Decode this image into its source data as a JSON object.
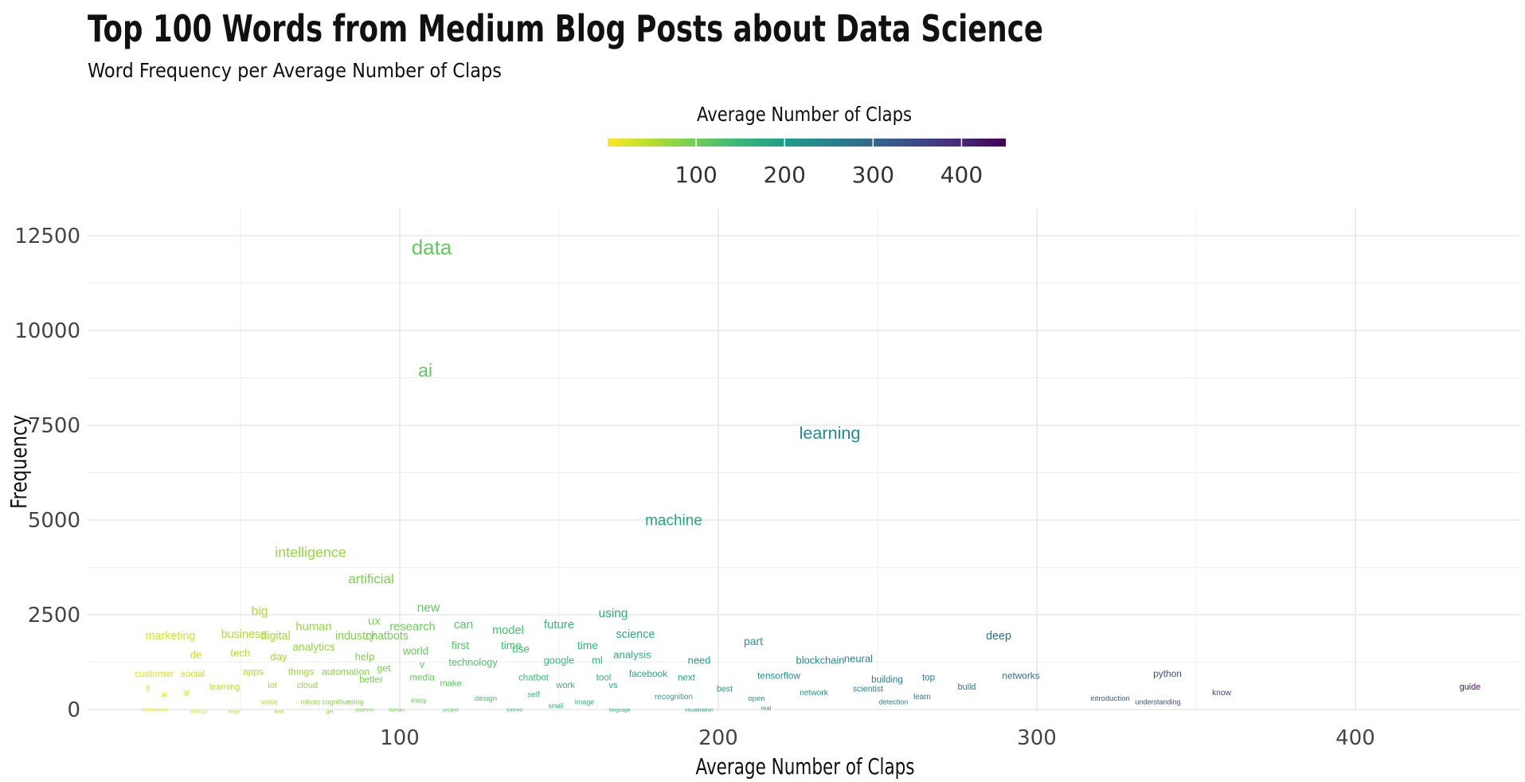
{
  "chart_data": {
    "type": "scatter",
    "title": "Top 100 Words from Medium Blog Posts about Data Science",
    "subtitle": "Word Frequency per Average Number of Claps",
    "xlabel": "Average Number of Claps",
    "ylabel": "Frequency",
    "xlim": [
      5,
      450
    ],
    "ylim": [
      0,
      13000
    ],
    "xticks": [
      100,
      200,
      300,
      400
    ],
    "xtick_labels": [
      "100",
      "200",
      "300",
      "400"
    ],
    "yticks": [
      0,
      2500,
      5000,
      7500,
      10000,
      12500
    ],
    "ytick_labels": [
      "0",
      "2500",
      "5000",
      "7500",
      "10000",
      "12500"
    ],
    "grid": true,
    "legend": {
      "title": "Average Number of Claps",
      "placement": "top",
      "range": [
        0,
        450
      ],
      "ticks": [
        100,
        200,
        300,
        400
      ],
      "tick_labels": [
        "100",
        "200",
        "300",
        "400"
      ],
      "colormap": "viridis (reversed)",
      "colors": [
        "#fde725",
        "#b5de2b",
        "#6ece58",
        "#35b779",
        "#1f9e89",
        "#26828e",
        "#31688e",
        "#3e4989",
        "#482878",
        "#440154"
      ]
    },
    "points": [
      {
        "label": "data",
        "x": 110,
        "y": 12200
      },
      {
        "label": "ai",
        "x": 108,
        "y": 8950
      },
      {
        "label": "learning",
        "x": 235,
        "y": 7300
      },
      {
        "label": "machine",
        "x": 186,
        "y": 5000
      },
      {
        "label": "intelligence",
        "x": 72,
        "y": 4150
      },
      {
        "label": "artificial",
        "x": 91,
        "y": 3450
      },
      {
        "label": "new",
        "x": 109,
        "y": 2700
      },
      {
        "label": "big",
        "x": 56,
        "y": 2600
      },
      {
        "label": "using",
        "x": 167,
        "y": 2550
      },
      {
        "label": "future",
        "x": 150,
        "y": 2250
      },
      {
        "label": "can",
        "x": 120,
        "y": 2250
      },
      {
        "label": "human",
        "x": 73,
        "y": 2200
      },
      {
        "label": "research",
        "x": 104,
        "y": 2200
      },
      {
        "label": "ux",
        "x": 92,
        "y": 2350
      },
      {
        "label": "model",
        "x": 134,
        "y": 2100
      },
      {
        "label": "science",
        "x": 174,
        "y": 2000
      },
      {
        "label": "deep",
        "x": 288,
        "y": 1950
      },
      {
        "label": "business",
        "x": 51,
        "y": 2000
      },
      {
        "label": "marketing",
        "x": 28,
        "y": 1950
      },
      {
        "label": "digital",
        "x": 61,
        "y": 1950
      },
      {
        "label": "industry",
        "x": 86,
        "y": 1950
      },
      {
        "label": "chatbots",
        "x": 96,
        "y": 1950
      },
      {
        "label": "part",
        "x": 211,
        "y": 1800
      },
      {
        "label": "first",
        "x": 119,
        "y": 1700
      },
      {
        "label": "time",
        "x": 135,
        "y": 1700
      },
      {
        "label": "time",
        "x": 159,
        "y": 1700
      },
      {
        "label": "analytics",
        "x": 73,
        "y": 1650
      },
      {
        "label": "world",
        "x": 105,
        "y": 1550
      },
      {
        "label": "use",
        "x": 138,
        "y": 1600
      },
      {
        "label": "tech",
        "x": 50,
        "y": 1500
      },
      {
        "label": "de",
        "x": 36,
        "y": 1450
      },
      {
        "label": "day",
        "x": 62,
        "y": 1400
      },
      {
        "label": "help",
        "x": 89,
        "y": 1400
      },
      {
        "label": "analysis",
        "x": 173,
        "y": 1450
      },
      {
        "label": "neural",
        "x": 244,
        "y": 1350
      },
      {
        "label": "need",
        "x": 194,
        "y": 1300
      },
      {
        "label": "blockchain",
        "x": 232,
        "y": 1300
      },
      {
        "label": "google",
        "x": 150,
        "y": 1300
      },
      {
        "label": "technology",
        "x": 123,
        "y": 1250
      },
      {
        "label": "ml",
        "x": 162,
        "y": 1300
      },
      {
        "label": "v",
        "x": 107,
        "y": 1200
      },
      {
        "label": "get",
        "x": 95,
        "y": 1100
      },
      {
        "label": "things",
        "x": 69,
        "y": 1000
      },
      {
        "label": "apps",
        "x": 54,
        "y": 1000
      },
      {
        "label": "customer",
        "x": 23,
        "y": 950
      },
      {
        "label": "social",
        "x": 35,
        "y": 950
      },
      {
        "label": "automation",
        "x": 83,
        "y": 1000
      },
      {
        "label": "facebook",
        "x": 178,
        "y": 950
      },
      {
        "label": "tensorflow",
        "x": 219,
        "y": 900
      },
      {
        "label": "networks",
        "x": 295,
        "y": 900
      },
      {
        "label": "python",
        "x": 341,
        "y": 950
      },
      {
        "label": "next",
        "x": 190,
        "y": 850
      },
      {
        "label": "tool",
        "x": 164,
        "y": 850
      },
      {
        "label": "media",
        "x": 107,
        "y": 850
      },
      {
        "label": "chatbot",
        "x": 142,
        "y": 850
      },
      {
        "label": "better",
        "x": 91,
        "y": 800
      },
      {
        "label": "top",
        "x": 266,
        "y": 850
      },
      {
        "label": "building",
        "x": 253,
        "y": 800
      },
      {
        "label": "make",
        "x": 116,
        "y": 700
      },
      {
        "label": "work",
        "x": 152,
        "y": 650
      },
      {
        "label": "vs",
        "x": 167,
        "y": 650
      },
      {
        "label": "cloud",
        "x": 71,
        "y": 650
      },
      {
        "label": "iot",
        "x": 60,
        "y": 650
      },
      {
        "label": "learning",
        "x": 45,
        "y": 600
      },
      {
        "label": "best",
        "x": 202,
        "y": 550
      },
      {
        "label": "build",
        "x": 278,
        "y": 600
      },
      {
        "label": "scientist",
        "x": 247,
        "y": 550
      },
      {
        "label": "know",
        "x": 358,
        "y": 450
      },
      {
        "label": "guide",
        "x": 436,
        "y": 600
      },
      {
        "label": "fi",
        "x": 21,
        "y": 550
      },
      {
        "label": "al",
        "x": 33,
        "y": 450
      },
      {
        "label": "ai",
        "x": 26,
        "y": 400
      },
      {
        "label": "network",
        "x": 230,
        "y": 450
      },
      {
        "label": "self",
        "x": 142,
        "y": 400
      },
      {
        "label": "recognition",
        "x": 186,
        "y": 350
      },
      {
        "label": "design",
        "x": 127,
        "y": 300
      },
      {
        "label": "open",
        "x": 212,
        "y": 300
      },
      {
        "label": "easy",
        "x": 106,
        "y": 250
      },
      {
        "label": "introduction",
        "x": 323,
        "y": 300
      },
      {
        "label": "learn",
        "x": 264,
        "y": 350
      },
      {
        "label": "image",
        "x": 158,
        "y": 200
      },
      {
        "label": "voice",
        "x": 59,
        "y": 200
      },
      {
        "label": "robots",
        "x": 72,
        "y": 200
      },
      {
        "label": "using",
        "x": 86,
        "y": 200
      },
      {
        "label": "detection",
        "x": 255,
        "y": 200
      },
      {
        "label": "understanding",
        "x": 338,
        "y": 200
      },
      {
        "label": "small",
        "x": 149,
        "y": 100
      },
      {
        "label": "real",
        "x": 215,
        "y": 50
      },
      {
        "label": "project",
        "x": 116,
        "y": 0
      },
      {
        "label": "language",
        "x": 169,
        "y": 0
      },
      {
        "label": "visualization",
        "x": 194,
        "y": 0
      },
      {
        "label": "platform",
        "x": 89,
        "y": 0
      },
      {
        "label": "human",
        "x": 99,
        "y": 0
      },
      {
        "label": "trained",
        "x": 136,
        "y": 0
      },
      {
        "label": "ways",
        "x": 48,
        "y": -50
      },
      {
        "label": "ecommerce",
        "x": 23,
        "y": 0
      },
      {
        "label": "startups",
        "x": 37,
        "y": -50
      },
      {
        "label": "bad",
        "x": 62,
        "y": -50
      },
      {
        "label": "get",
        "x": 78,
        "y": -50
      },
      {
        "label": "cognitive",
        "x": 80,
        "y": 200
      }
    ]
  }
}
